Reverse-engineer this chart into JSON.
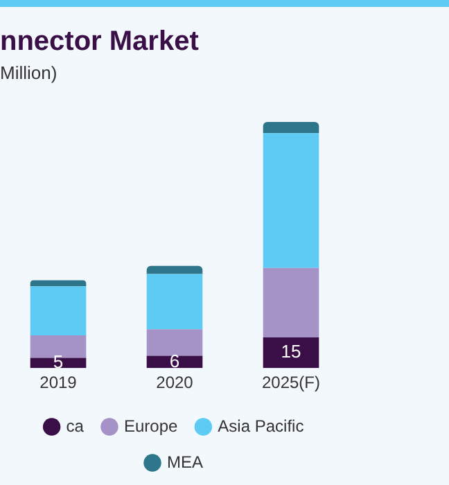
{
  "chart_data": {
    "type": "bar",
    "title": "nnector Market",
    "subtitle": "Million)",
    "categories": [
      "2019",
      "2020",
      "2025(F)"
    ],
    "stacked": true,
    "legend": "bottom",
    "series": [
      {
        "name": "ca",
        "color": "#3a0f47",
        "values": [
          5,
          6,
          15
        ],
        "value_labels": [
          "5",
          "6",
          "15"
        ]
      },
      {
        "name": "Europe",
        "color": "#a592c6",
        "values": [
          11,
          13,
          34
        ]
      },
      {
        "name": "Asia Pacific",
        "color": "#5ecbf5",
        "values": [
          24,
          27,
          66
        ]
      },
      {
        "name": "MEA",
        "color": "#2e7689",
        "values": [
          3,
          4,
          5.5
        ]
      }
    ]
  }
}
